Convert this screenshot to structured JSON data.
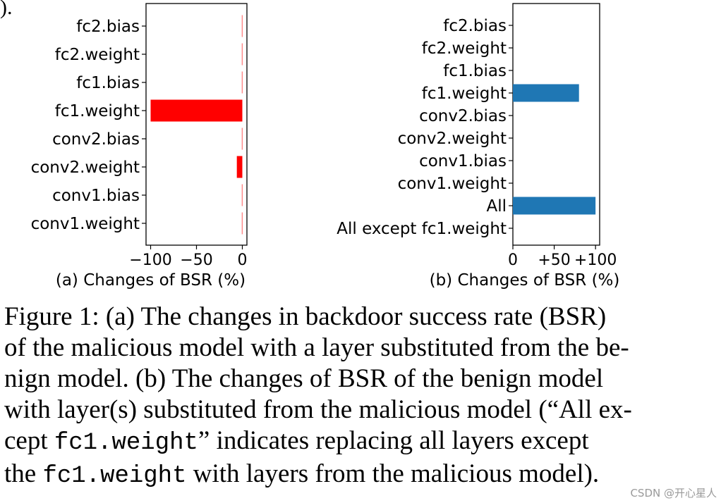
{
  "corner_fragment": ").",
  "chart_data": [
    {
      "type": "bar",
      "orientation": "horizontal",
      "categories": [
        "fc2.bias",
        "fc2.weight",
        "fc1.bias",
        "fc1.weight",
        "conv2.bias",
        "conv2.weight",
        "conv1.bias",
        "conv1.weight"
      ],
      "values": [
        -0.5,
        -0.5,
        -0.5,
        -100,
        -0.5,
        -6,
        -0.5,
        -0.5
      ],
      "xlabel": "(a) Changes of BSR (%)",
      "xticks": [
        -100,
        -50,
        0
      ],
      "xtick_labels": [
        "−100",
        "−50",
        "0"
      ],
      "xlim": [
        -105,
        5
      ],
      "color": "#ff0000",
      "grid": false
    },
    {
      "type": "bar",
      "orientation": "horizontal",
      "categories": [
        "fc2.bias",
        "fc2.weight",
        "fc1.bias",
        "fc1.weight",
        "conv2.bias",
        "conv2.weight",
        "conv1.bias",
        "conv1.weight",
        "All",
        "All except fc1.weight"
      ],
      "values": [
        0,
        0,
        0,
        80,
        0,
        0,
        0,
        0,
        100,
        0
      ],
      "xlabel": "(b) Changes of BSR (%)",
      "xticks": [
        0,
        50,
        100
      ],
      "xtick_labels": [
        "0",
        "+50",
        "+100"
      ],
      "xlim": [
        0,
        105
      ],
      "color": "#1f77b4",
      "grid": false
    }
  ],
  "caption": {
    "line1": "Figure 1: (a) The changes in backdoor success rate (BSR)",
    "line2": "of the malicious model with a layer substituted from the be-",
    "line3": "nign model.  (b) The changes of BSR of the benign model",
    "line4": "with layer(s) substituted from the malicious model (“All ex-",
    "line5_pre": "cept ",
    "line5_code": "fc1.weight",
    "line5_post": "” indicates replacing all layers except",
    "line6_pre": "the ",
    "line6_code": "fc1.weight",
    "line6_post": " with layers from the malicious model)."
  },
  "watermark": "CSDN @开心星人"
}
